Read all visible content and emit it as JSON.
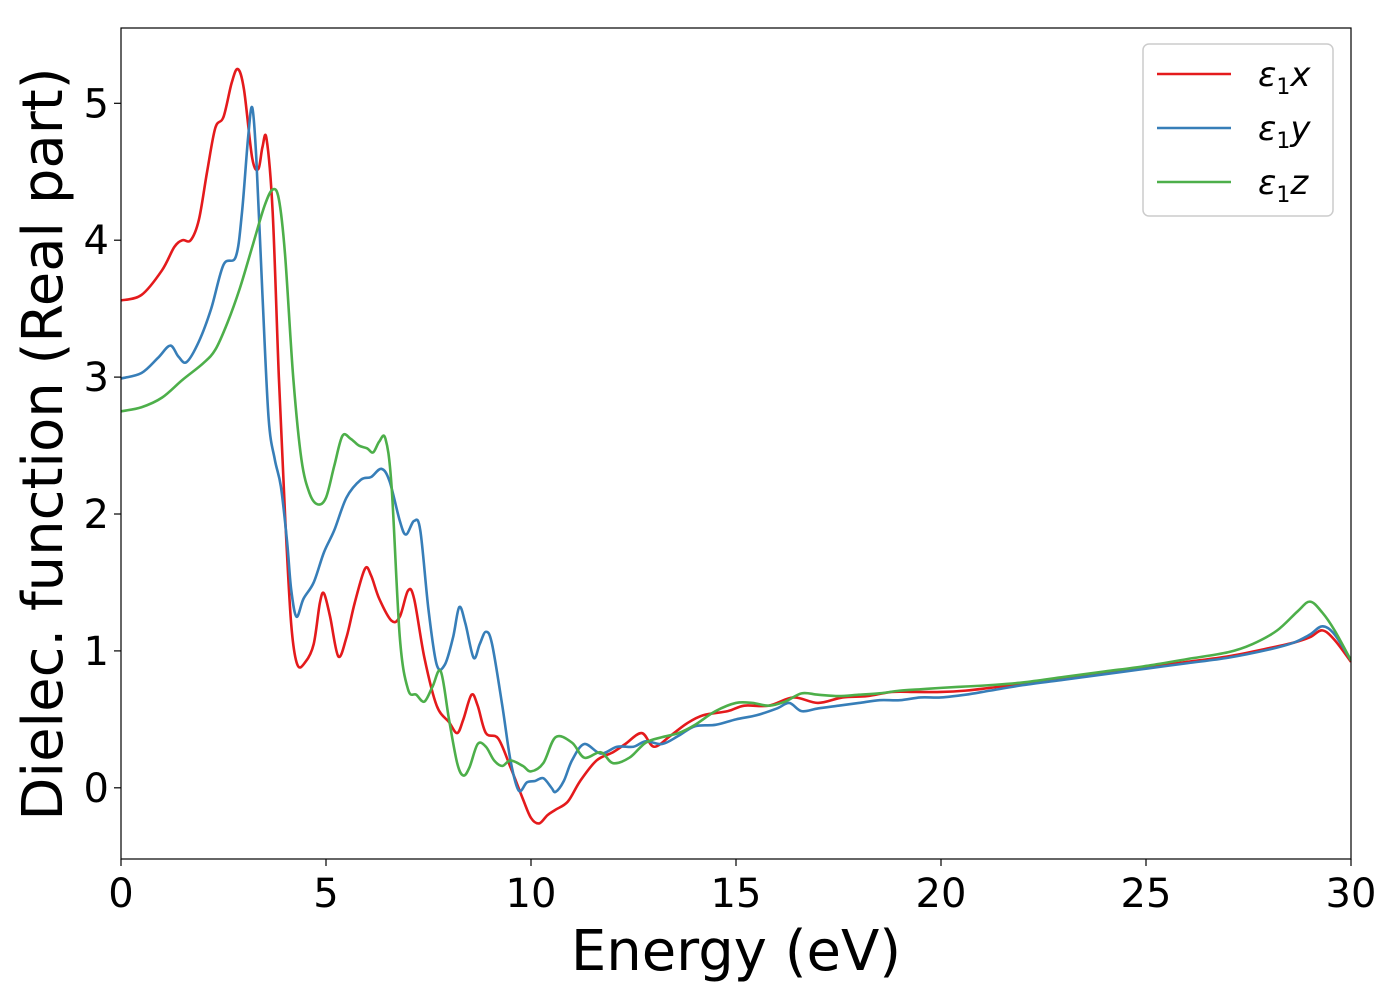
{
  "chart_data": {
    "type": "line",
    "xlabel": "Energy (eV)",
    "ylabel": "Dielec. function (Real part)",
    "xlim": [
      0,
      30
    ],
    "ylim": [
      -0.52,
      5.55
    ],
    "xticks": [
      0,
      5,
      10,
      15,
      20,
      25,
      30
    ],
    "yticks": [
      0,
      1,
      2,
      3,
      4,
      5
    ],
    "grid": false,
    "legend_position": "top-right",
    "series": [
      {
        "name_base": "ε",
        "name_sub": "1",
        "name_var": "x",
        "color": "#e41a1c",
        "points": [
          [
            0,
            3.56
          ],
          [
            0.5,
            3.6
          ],
          [
            1.0,
            3.78
          ],
          [
            1.3,
            3.95
          ],
          [
            1.5,
            4.0
          ],
          [
            1.7,
            4.0
          ],
          [
            1.9,
            4.15
          ],
          [
            2.1,
            4.5
          ],
          [
            2.3,
            4.82
          ],
          [
            2.5,
            4.9
          ],
          [
            2.7,
            5.15
          ],
          [
            2.85,
            5.25
          ],
          [
            3.0,
            5.1
          ],
          [
            3.2,
            4.6
          ],
          [
            3.35,
            4.52
          ],
          [
            3.45,
            4.68
          ],
          [
            3.55,
            4.74
          ],
          [
            3.7,
            4.2
          ],
          [
            3.85,
            3.0
          ],
          [
            4.0,
            2.0
          ],
          [
            4.15,
            1.2
          ],
          [
            4.3,
            0.9
          ],
          [
            4.5,
            0.92
          ],
          [
            4.7,
            1.05
          ],
          [
            4.85,
            1.35
          ],
          [
            4.95,
            1.42
          ],
          [
            5.1,
            1.25
          ],
          [
            5.3,
            0.96
          ],
          [
            5.5,
            1.1
          ],
          [
            5.7,
            1.35
          ],
          [
            5.95,
            1.6
          ],
          [
            6.1,
            1.55
          ],
          [
            6.3,
            1.38
          ],
          [
            6.6,
            1.22
          ],
          [
            6.8,
            1.25
          ],
          [
            7.0,
            1.44
          ],
          [
            7.15,
            1.38
          ],
          [
            7.4,
            0.95
          ],
          [
            7.7,
            0.6
          ],
          [
            8.0,
            0.48
          ],
          [
            8.2,
            0.4
          ],
          [
            8.35,
            0.5
          ],
          [
            8.55,
            0.68
          ],
          [
            8.7,
            0.6
          ],
          [
            8.9,
            0.4
          ],
          [
            9.2,
            0.36
          ],
          [
            9.5,
            0.15
          ],
          [
            9.8,
            -0.08
          ],
          [
            10.0,
            -0.22
          ],
          [
            10.2,
            -0.26
          ],
          [
            10.4,
            -0.2
          ],
          [
            10.6,
            -0.16
          ],
          [
            10.9,
            -0.1
          ],
          [
            11.2,
            0.05
          ],
          [
            11.6,
            0.2
          ],
          [
            12.0,
            0.26
          ],
          [
            12.3,
            0.32
          ],
          [
            12.7,
            0.4
          ],
          [
            13.0,
            0.3
          ],
          [
            13.4,
            0.38
          ],
          [
            13.8,
            0.47
          ],
          [
            14.2,
            0.53
          ],
          [
            14.8,
            0.56
          ],
          [
            15.2,
            0.6
          ],
          [
            15.8,
            0.6
          ],
          [
            16.4,
            0.66
          ],
          [
            17.0,
            0.62
          ],
          [
            17.6,
            0.66
          ],
          [
            18.2,
            0.67
          ],
          [
            18.8,
            0.7
          ],
          [
            19.4,
            0.7
          ],
          [
            20.0,
            0.7
          ],
          [
            20.6,
            0.71
          ],
          [
            21.2,
            0.73
          ],
          [
            22.0,
            0.76
          ],
          [
            23.0,
            0.8
          ],
          [
            24.0,
            0.84
          ],
          [
            25.0,
            0.88
          ],
          [
            26.0,
            0.92
          ],
          [
            27.0,
            0.96
          ],
          [
            28.0,
            1.02
          ],
          [
            28.6,
            1.06
          ],
          [
            29.0,
            1.1
          ],
          [
            29.3,
            1.15
          ],
          [
            29.6,
            1.08
          ],
          [
            30.0,
            0.92
          ]
        ]
      },
      {
        "name_base": "ε",
        "name_sub": "1",
        "name_var": "y",
        "color": "#377eb8",
        "points": [
          [
            0,
            2.99
          ],
          [
            0.5,
            3.03
          ],
          [
            0.9,
            3.14
          ],
          [
            1.2,
            3.23
          ],
          [
            1.4,
            3.15
          ],
          [
            1.6,
            3.11
          ],
          [
            1.9,
            3.26
          ],
          [
            2.2,
            3.5
          ],
          [
            2.5,
            3.82
          ],
          [
            2.8,
            3.88
          ],
          [
            2.95,
            4.2
          ],
          [
            3.1,
            4.75
          ],
          [
            3.2,
            4.97
          ],
          [
            3.3,
            4.6
          ],
          [
            3.45,
            3.6
          ],
          [
            3.6,
            2.7
          ],
          [
            3.75,
            2.4
          ],
          [
            3.9,
            2.2
          ],
          [
            4.05,
            1.8
          ],
          [
            4.15,
            1.45
          ],
          [
            4.28,
            1.25
          ],
          [
            4.45,
            1.38
          ],
          [
            4.7,
            1.5
          ],
          [
            4.95,
            1.72
          ],
          [
            5.2,
            1.88
          ],
          [
            5.5,
            2.12
          ],
          [
            5.85,
            2.25
          ],
          [
            6.1,
            2.27
          ],
          [
            6.35,
            2.33
          ],
          [
            6.55,
            2.24
          ],
          [
            6.8,
            1.95
          ],
          [
            6.95,
            1.85
          ],
          [
            7.15,
            1.95
          ],
          [
            7.3,
            1.88
          ],
          [
            7.5,
            1.3
          ],
          [
            7.7,
            0.9
          ],
          [
            7.9,
            0.9
          ],
          [
            8.1,
            1.1
          ],
          [
            8.25,
            1.32
          ],
          [
            8.4,
            1.2
          ],
          [
            8.6,
            0.95
          ],
          [
            8.75,
            1.05
          ],
          [
            8.9,
            1.14
          ],
          [
            9.05,
            1.05
          ],
          [
            9.3,
            0.6
          ],
          [
            9.5,
            0.2
          ],
          [
            9.7,
            -0.02
          ],
          [
            9.9,
            0.04
          ],
          [
            10.1,
            0.05
          ],
          [
            10.3,
            0.07
          ],
          [
            10.5,
            0.0
          ],
          [
            10.6,
            -0.03
          ],
          [
            10.8,
            0.05
          ],
          [
            11.0,
            0.2
          ],
          [
            11.3,
            0.32
          ],
          [
            11.7,
            0.25
          ],
          [
            12.1,
            0.3
          ],
          [
            12.5,
            0.3
          ],
          [
            12.8,
            0.34
          ],
          [
            13.2,
            0.32
          ],
          [
            13.6,
            0.38
          ],
          [
            14.0,
            0.45
          ],
          [
            14.5,
            0.46
          ],
          [
            15.0,
            0.5
          ],
          [
            15.5,
            0.53
          ],
          [
            16.0,
            0.58
          ],
          [
            16.3,
            0.62
          ],
          [
            16.6,
            0.56
          ],
          [
            17.0,
            0.58
          ],
          [
            17.5,
            0.6
          ],
          [
            18.0,
            0.62
          ],
          [
            18.5,
            0.64
          ],
          [
            19.0,
            0.64
          ],
          [
            19.5,
            0.66
          ],
          [
            20.0,
            0.66
          ],
          [
            20.6,
            0.68
          ],
          [
            21.2,
            0.71
          ],
          [
            22.0,
            0.75
          ],
          [
            23.0,
            0.79
          ],
          [
            24.0,
            0.83
          ],
          [
            25.0,
            0.87
          ],
          [
            26.0,
            0.91
          ],
          [
            27.0,
            0.95
          ],
          [
            28.0,
            1.01
          ],
          [
            28.6,
            1.06
          ],
          [
            29.0,
            1.12
          ],
          [
            29.3,
            1.18
          ],
          [
            29.6,
            1.12
          ],
          [
            30.0,
            0.93
          ]
        ]
      },
      {
        "name_base": "ε",
        "name_sub": "1",
        "name_var": "z",
        "color": "#4daf4a",
        "points": [
          [
            0,
            2.75
          ],
          [
            0.5,
            2.78
          ],
          [
            1.0,
            2.85
          ],
          [
            1.5,
            2.98
          ],
          [
            2.0,
            3.1
          ],
          [
            2.3,
            3.2
          ],
          [
            2.6,
            3.4
          ],
          [
            2.9,
            3.65
          ],
          [
            3.2,
            3.95
          ],
          [
            3.5,
            4.25
          ],
          [
            3.7,
            4.37
          ],
          [
            3.85,
            4.3
          ],
          [
            4.0,
            3.9
          ],
          [
            4.2,
            3.0
          ],
          [
            4.4,
            2.4
          ],
          [
            4.6,
            2.15
          ],
          [
            4.8,
            2.07
          ],
          [
            5.0,
            2.12
          ],
          [
            5.2,
            2.35
          ],
          [
            5.4,
            2.57
          ],
          [
            5.6,
            2.55
          ],
          [
            5.8,
            2.5
          ],
          [
            6.0,
            2.48
          ],
          [
            6.15,
            2.45
          ],
          [
            6.3,
            2.53
          ],
          [
            6.45,
            2.55
          ],
          [
            6.6,
            2.2
          ],
          [
            6.8,
            1.1
          ],
          [
            7.0,
            0.72
          ],
          [
            7.2,
            0.68
          ],
          [
            7.4,
            0.63
          ],
          [
            7.6,
            0.74
          ],
          [
            7.8,
            0.85
          ],
          [
            8.0,
            0.5
          ],
          [
            8.2,
            0.18
          ],
          [
            8.35,
            0.09
          ],
          [
            8.5,
            0.15
          ],
          [
            8.7,
            0.32
          ],
          [
            8.9,
            0.3
          ],
          [
            9.1,
            0.2
          ],
          [
            9.3,
            0.16
          ],
          [
            9.5,
            0.2
          ],
          [
            9.8,
            0.16
          ],
          [
            10.0,
            0.12
          ],
          [
            10.3,
            0.18
          ],
          [
            10.6,
            0.37
          ],
          [
            11.0,
            0.33
          ],
          [
            11.3,
            0.22
          ],
          [
            11.7,
            0.26
          ],
          [
            12.0,
            0.18
          ],
          [
            12.4,
            0.22
          ],
          [
            12.8,
            0.33
          ],
          [
            13.2,
            0.37
          ],
          [
            13.6,
            0.4
          ],
          [
            14.0,
            0.46
          ],
          [
            14.5,
            0.56
          ],
          [
            15.0,
            0.62
          ],
          [
            15.4,
            0.62
          ],
          [
            15.8,
            0.6
          ],
          [
            16.2,
            0.63
          ],
          [
            16.6,
            0.69
          ],
          [
            17.0,
            0.68
          ],
          [
            17.5,
            0.67
          ],
          [
            18.0,
            0.68
          ],
          [
            18.5,
            0.69
          ],
          [
            19.0,
            0.71
          ],
          [
            19.5,
            0.72
          ],
          [
            20.0,
            0.73
          ],
          [
            20.6,
            0.74
          ],
          [
            21.2,
            0.75
          ],
          [
            22.0,
            0.77
          ],
          [
            23.0,
            0.81
          ],
          [
            24.0,
            0.85
          ],
          [
            25.0,
            0.89
          ],
          [
            26.0,
            0.94
          ],
          [
            27.0,
            0.99
          ],
          [
            27.6,
            1.05
          ],
          [
            28.2,
            1.15
          ],
          [
            28.7,
            1.29
          ],
          [
            29.0,
            1.36
          ],
          [
            29.3,
            1.28
          ],
          [
            29.6,
            1.15
          ],
          [
            30.0,
            0.93
          ]
        ]
      }
    ]
  }
}
